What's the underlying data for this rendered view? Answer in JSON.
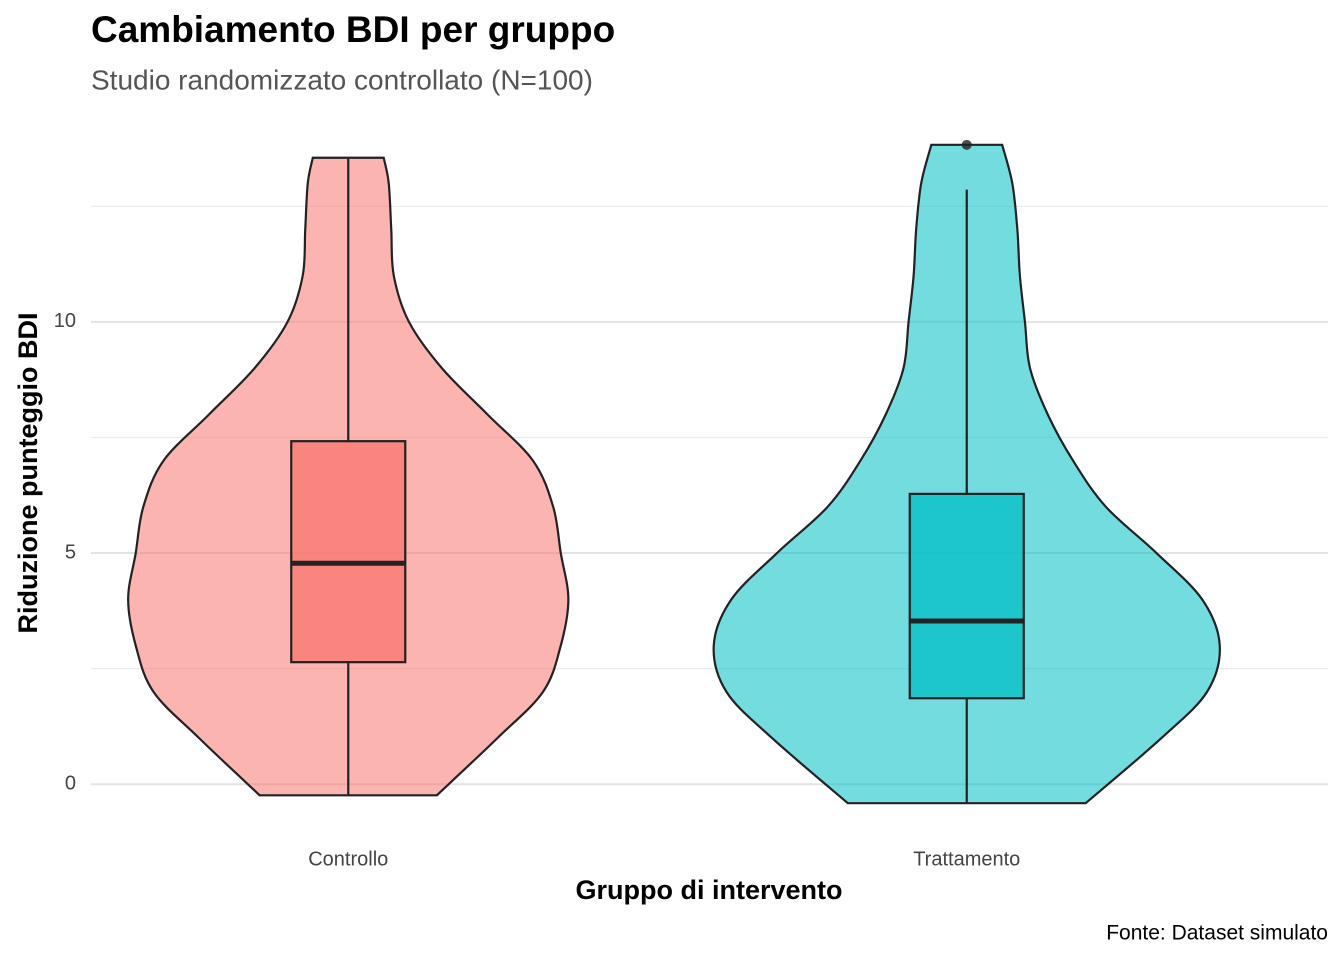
{
  "chart_data": {
    "type": "violin",
    "title": "Cambiamento BDI per gruppo",
    "subtitle": "Studio randomizzato controllato (N=100)",
    "x_label": "Gruppo di intervento",
    "y_label": "Riduzione punteggio BDI",
    "caption": "Fonte: Dataset simulato",
    "ylim": [
      -1.12,
      14.54
    ],
    "yticks": [
      0,
      5,
      10
    ],
    "yticks_minor": [
      2.5,
      7.5,
      12.5
    ],
    "grid": true,
    "series": [
      {
        "name": "Controllo",
        "color": "#F8766D",
        "violin": {
          "y": [
            -0.24,
            1,
            2,
            3,
            4,
            5,
            6,
            7,
            8,
            9,
            10,
            11,
            12,
            13,
            13.55
          ],
          "density": [
            0.35,
            0.59,
            0.77,
            0.84,
            0.87,
            0.84,
            0.81,
            0.73,
            0.55,
            0.37,
            0.24,
            0.18,
            0.17,
            0.16,
            0.14
          ]
        },
        "box": {
          "whisker_low": -0.24,
          "q1": 2.64,
          "median": 4.78,
          "q3": 7.42,
          "whisker_high": 13.55
        }
      },
      {
        "name": "Trattamento",
        "color": "#00BFC4",
        "violin": {
          "y": [
            -0.41,
            1,
            2,
            3,
            4,
            5,
            6,
            7,
            8,
            9,
            10,
            11,
            12,
            13,
            13.83
          ],
          "density": [
            0.47,
            0.77,
            0.95,
            1.0,
            0.93,
            0.75,
            0.55,
            0.42,
            0.32,
            0.25,
            0.23,
            0.21,
            0.2,
            0.18,
            0.14
          ]
        },
        "box": {
          "whisker_low": -0.41,
          "q1": 1.86,
          "median": 3.53,
          "q3": 6.28,
          "whisker_high": 12.86
        },
        "outliers": [
          13.83
        ]
      }
    ]
  }
}
